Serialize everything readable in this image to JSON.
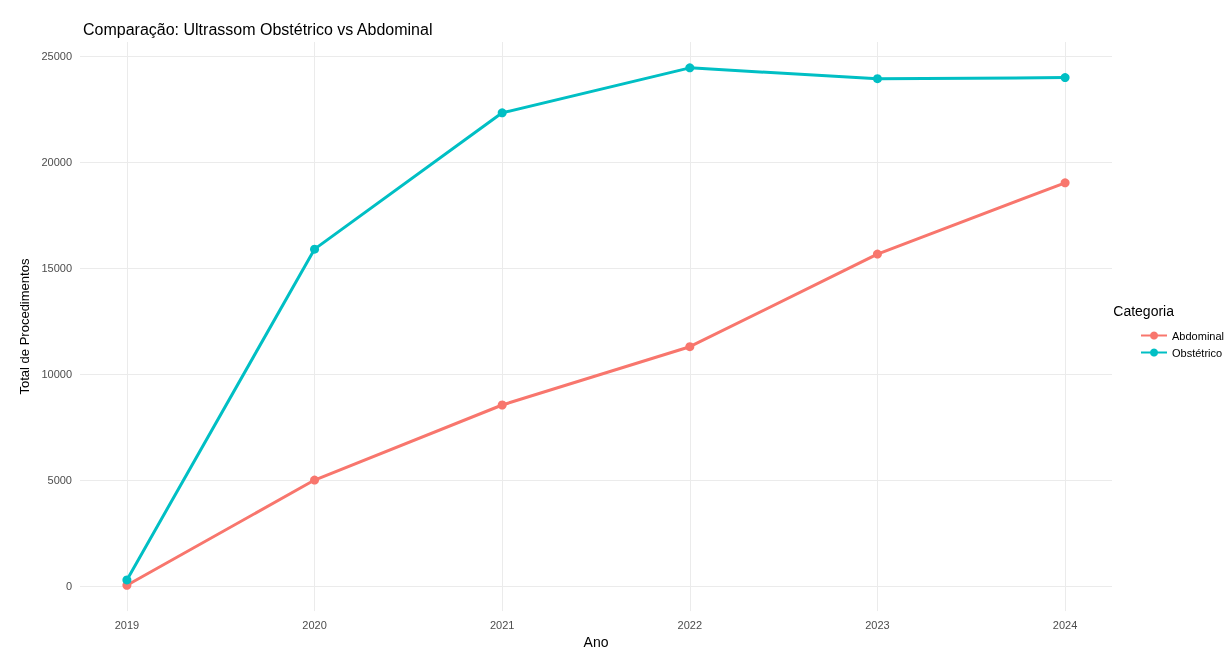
{
  "chart_data": {
    "type": "line",
    "title": "Comparação: Ultrassom Obstétrico vs Abdominal",
    "xlabel": "Ano",
    "ylabel": "Total de Procedimentos",
    "legend_title": "Categoria",
    "x": [
      2019,
      2020,
      2021,
      2022,
      2023,
      2024
    ],
    "series": [
      {
        "name": "Abdominal",
        "color": "#f8766d",
        "values": [
          50,
          5010,
          8550,
          11300,
          15670,
          19030
        ]
      },
      {
        "name": "Obstétrico",
        "color": "#00bfc4",
        "values": [
          300,
          15900,
          22330,
          24450,
          23940,
          23990
        ]
      }
    ],
    "xlim": [
      2018.75,
      2024.25
    ],
    "xticks": [
      2019,
      2020,
      2021,
      2022,
      2023,
      2024
    ],
    "ylim": [
      -1170,
      25670
    ],
    "yticks": [
      0,
      5000,
      10000,
      15000,
      20000,
      25000
    ],
    "grid": true,
    "legend": "right",
    "marker": "circle",
    "line_style": "solid"
  }
}
